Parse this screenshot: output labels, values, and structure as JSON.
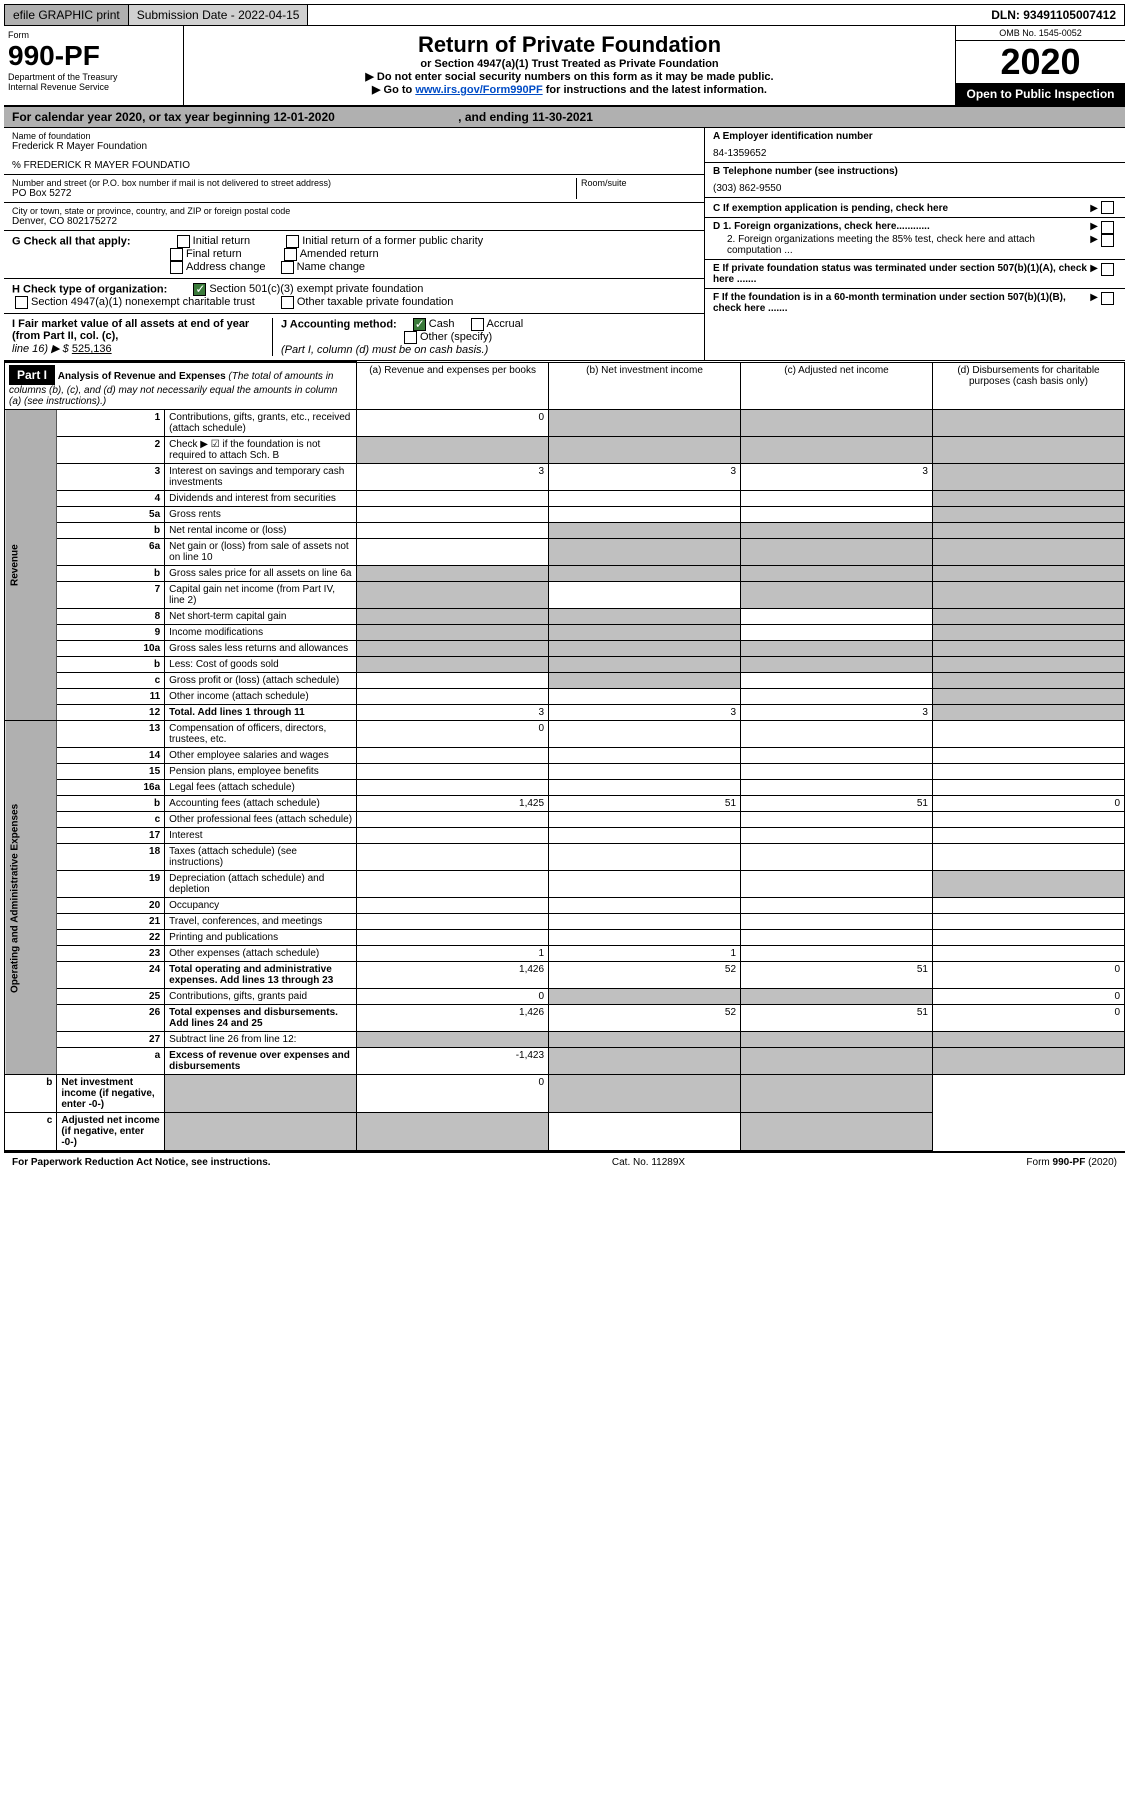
{
  "topbar": {
    "efile": "efile GRAPHIC print",
    "sub_label": "Submission Date - 2022-04-15",
    "dln": "DLN: 93491105007412"
  },
  "header": {
    "form_word": "Form",
    "form_no": "990-PF",
    "dept": "Department of the Treasury",
    "irs": "Internal Revenue Service",
    "title": "Return of Private Foundation",
    "subtitle": "or Section 4947(a)(1) Trust Treated as Private Foundation",
    "line1": "▶ Do not enter social security numbers on this form as it may be made public.",
    "line2a": "▶ Go to ",
    "line2b": "www.irs.gov/Form990PF",
    "line2c": " for instructions and the latest information.",
    "omb": "OMB No. 1545-0052",
    "year": "2020",
    "open": "Open to Public Inspection"
  },
  "cal": {
    "text": "For calendar year 2020, or tax year beginning 12-01-2020",
    "end": ", and ending 11-30-2021"
  },
  "info": {
    "name_lbl": "Name of foundation",
    "name": "Frederick R Mayer Foundation",
    "pct": "% FREDERICK R MAYER FOUNDATIO",
    "addr_lbl": "Number and street (or P.O. box number if mail is not delivered to street address)",
    "addr": "PO Box 5272",
    "room_lbl": "Room/suite",
    "city_lbl": "City or town, state or province, country, and ZIP or foreign postal code",
    "city": "Denver, CO  802175272",
    "a_lbl": "A Employer identification number",
    "a_val": "84-1359652",
    "b_lbl": "B Telephone number (see instructions)",
    "b_val": "(303) 862-9550",
    "c_lbl": "C If exemption application is pending, check here",
    "d1": "D 1. Foreign organizations, check here............",
    "d2": "2. Foreign organizations meeting the 85% test, check here and attach computation ...",
    "e_lbl": "E  If private foundation status was terminated under section 507(b)(1)(A), check here .......",
    "f_lbl": "F  If the foundation is in a 60-month termination under section 507(b)(1)(B), check here .......",
    "g": "G Check all that apply:",
    "g1": "Initial return",
    "g2": "Initial return of a former public charity",
    "g3": "Final return",
    "g4": "Amended return",
    "g5": "Address change",
    "g6": "Name change",
    "h": "H Check type of organization:",
    "h1": "Section 501(c)(3) exempt private foundation",
    "h2": "Section 4947(a)(1) nonexempt charitable trust",
    "h3": "Other taxable private foundation",
    "i": "I Fair market value of all assets at end of year (from Part II, col. (c),",
    "i2": "line 16) ▶ $",
    "i_val": "525,136",
    "j": "J Accounting method:",
    "j1": "Cash",
    "j2": "Accrual",
    "j3": "Other (specify)",
    "j4": "(Part I, column (d) must be on cash basis.)"
  },
  "part1": {
    "hdr": "Part I",
    "title": "Analysis of Revenue and Expenses",
    "note": " (The total of amounts in columns (b), (c), and (d) may not necessarily equal the amounts in column (a) (see instructions).)",
    "col_a": "(a)   Revenue and expenses per books",
    "col_b": "(b)   Net investment income",
    "col_c": "(c)   Adjusted net income",
    "col_d": "(d)   Disbursements for charitable purposes (cash basis only)",
    "rev_label": "Revenue",
    "op_label": "Operating and Administrative Expenses"
  },
  "rows": [
    {
      "n": "1",
      "d": "Contributions, gifts, grants, etc., received (attach schedule)",
      "a": "0",
      "b": "",
      "c": "",
      "dd": "",
      "ga": false,
      "gb": true,
      "gc": true,
      "gd": true
    },
    {
      "n": "2",
      "d": "Check ▶ ☑ if the foundation is not required to attach Sch. B",
      "a": "",
      "b": "",
      "c": "",
      "dd": "",
      "ga": true,
      "gb": true,
      "gc": true,
      "gd": true
    },
    {
      "n": "3",
      "d": "Interest on savings and temporary cash investments",
      "a": "3",
      "b": "3",
      "c": "3",
      "dd": "",
      "ga": false,
      "gb": false,
      "gc": false,
      "gd": true
    },
    {
      "n": "4",
      "d": "Dividends and interest from securities",
      "a": "",
      "b": "",
      "c": "",
      "dd": "",
      "ga": false,
      "gb": false,
      "gc": false,
      "gd": true
    },
    {
      "n": "5a",
      "d": "Gross rents",
      "a": "",
      "b": "",
      "c": "",
      "dd": "",
      "ga": false,
      "gb": false,
      "gc": false,
      "gd": true
    },
    {
      "n": "b",
      "d": "Net rental income or (loss)",
      "a": "",
      "b": "",
      "c": "",
      "dd": "",
      "ga": false,
      "gb": true,
      "gc": true,
      "gd": true
    },
    {
      "n": "6a",
      "d": "Net gain or (loss) from sale of assets not on line 10",
      "a": "",
      "b": "",
      "c": "",
      "dd": "",
      "ga": false,
      "gb": true,
      "gc": true,
      "gd": true
    },
    {
      "n": "b",
      "d": "Gross sales price for all assets on line 6a",
      "a": "",
      "b": "",
      "c": "",
      "dd": "",
      "ga": true,
      "gb": true,
      "gc": true,
      "gd": true
    },
    {
      "n": "7",
      "d": "Capital gain net income (from Part IV, line 2)",
      "a": "",
      "b": "",
      "c": "",
      "dd": "",
      "ga": true,
      "gb": false,
      "gc": true,
      "gd": true
    },
    {
      "n": "8",
      "d": "Net short-term capital gain",
      "a": "",
      "b": "",
      "c": "",
      "dd": "",
      "ga": true,
      "gb": true,
      "gc": false,
      "gd": true
    },
    {
      "n": "9",
      "d": "Income modifications",
      "a": "",
      "b": "",
      "c": "",
      "dd": "",
      "ga": true,
      "gb": true,
      "gc": false,
      "gd": true
    },
    {
      "n": "10a",
      "d": "Gross sales less returns and allowances",
      "a": "",
      "b": "",
      "c": "",
      "dd": "",
      "ga": true,
      "gb": true,
      "gc": true,
      "gd": true
    },
    {
      "n": "b",
      "d": "Less: Cost of goods sold",
      "a": "",
      "b": "",
      "c": "",
      "dd": "",
      "ga": true,
      "gb": true,
      "gc": true,
      "gd": true
    },
    {
      "n": "c",
      "d": "Gross profit or (loss) (attach schedule)",
      "a": "",
      "b": "",
      "c": "",
      "dd": "",
      "ga": false,
      "gb": true,
      "gc": false,
      "gd": true
    },
    {
      "n": "11",
      "d": "Other income (attach schedule)",
      "a": "",
      "b": "",
      "c": "",
      "dd": "",
      "ga": false,
      "gb": false,
      "gc": false,
      "gd": true
    },
    {
      "n": "12",
      "d": "Total. Add lines 1 through 11",
      "a": "3",
      "b": "3",
      "c": "3",
      "dd": "",
      "ga": false,
      "gb": false,
      "gc": false,
      "gd": true,
      "bold": true
    },
    {
      "n": "13",
      "d": "Compensation of officers, directors, trustees, etc.",
      "a": "0",
      "b": "",
      "c": "",
      "dd": "",
      "ga": false,
      "gb": false,
      "gc": false,
      "gd": false
    },
    {
      "n": "14",
      "d": "Other employee salaries and wages",
      "a": "",
      "b": "",
      "c": "",
      "dd": "",
      "ga": false,
      "gb": false,
      "gc": false,
      "gd": false
    },
    {
      "n": "15",
      "d": "Pension plans, employee benefits",
      "a": "",
      "b": "",
      "c": "",
      "dd": "",
      "ga": false,
      "gb": false,
      "gc": false,
      "gd": false
    },
    {
      "n": "16a",
      "d": "Legal fees (attach schedule)",
      "a": "",
      "b": "",
      "c": "",
      "dd": "",
      "ga": false,
      "gb": false,
      "gc": false,
      "gd": false
    },
    {
      "n": "b",
      "d": "Accounting fees (attach schedule)",
      "a": "1,425",
      "b": "51",
      "c": "51",
      "dd": "0",
      "ga": false,
      "gb": false,
      "gc": false,
      "gd": false
    },
    {
      "n": "c",
      "d": "Other professional fees (attach schedule)",
      "a": "",
      "b": "",
      "c": "",
      "dd": "",
      "ga": false,
      "gb": false,
      "gc": false,
      "gd": false
    },
    {
      "n": "17",
      "d": "Interest",
      "a": "",
      "b": "",
      "c": "",
      "dd": "",
      "ga": false,
      "gb": false,
      "gc": false,
      "gd": false
    },
    {
      "n": "18",
      "d": "Taxes (attach schedule) (see instructions)",
      "a": "",
      "b": "",
      "c": "",
      "dd": "",
      "ga": false,
      "gb": false,
      "gc": false,
      "gd": false
    },
    {
      "n": "19",
      "d": "Depreciation (attach schedule) and depletion",
      "a": "",
      "b": "",
      "c": "",
      "dd": "",
      "ga": false,
      "gb": false,
      "gc": false,
      "gd": true
    },
    {
      "n": "20",
      "d": "Occupancy",
      "a": "",
      "b": "",
      "c": "",
      "dd": "",
      "ga": false,
      "gb": false,
      "gc": false,
      "gd": false
    },
    {
      "n": "21",
      "d": "Travel, conferences, and meetings",
      "a": "",
      "b": "",
      "c": "",
      "dd": "",
      "ga": false,
      "gb": false,
      "gc": false,
      "gd": false
    },
    {
      "n": "22",
      "d": "Printing and publications",
      "a": "",
      "b": "",
      "c": "",
      "dd": "",
      "ga": false,
      "gb": false,
      "gc": false,
      "gd": false
    },
    {
      "n": "23",
      "d": "Other expenses (attach schedule)",
      "a": "1",
      "b": "1",
      "c": "",
      "dd": "",
      "ga": false,
      "gb": false,
      "gc": false,
      "gd": false
    },
    {
      "n": "24",
      "d": "Total operating and administrative expenses. Add lines 13 through 23",
      "a": "1,426",
      "b": "52",
      "c": "51",
      "dd": "0",
      "ga": false,
      "gb": false,
      "gc": false,
      "gd": false,
      "bold": true
    },
    {
      "n": "25",
      "d": "Contributions, gifts, grants paid",
      "a": "0",
      "b": "",
      "c": "",
      "dd": "0",
      "ga": false,
      "gb": true,
      "gc": true,
      "gd": false
    },
    {
      "n": "26",
      "d": "Total expenses and disbursements. Add lines 24 and 25",
      "a": "1,426",
      "b": "52",
      "c": "51",
      "dd": "0",
      "ga": false,
      "gb": false,
      "gc": false,
      "gd": false,
      "bold": true
    },
    {
      "n": "27",
      "d": "Subtract line 26 from line 12:",
      "a": "",
      "b": "",
      "c": "",
      "dd": "",
      "ga": true,
      "gb": true,
      "gc": true,
      "gd": true
    },
    {
      "n": "a",
      "d": "Excess of revenue over expenses and disbursements",
      "a": "-1,423",
      "b": "",
      "c": "",
      "dd": "",
      "ga": false,
      "gb": true,
      "gc": true,
      "gd": true,
      "bold": true
    },
    {
      "n": "b",
      "d": "Net investment income (if negative, enter -0-)",
      "a": "",
      "b": "0",
      "c": "",
      "dd": "",
      "ga": true,
      "gb": false,
      "gc": true,
      "gd": true,
      "bold": true
    },
    {
      "n": "c",
      "d": "Adjusted net income (if negative, enter -0-)",
      "a": "",
      "b": "",
      "c": "",
      "dd": "",
      "ga": true,
      "gb": true,
      "gc": false,
      "gd": true,
      "bold": true
    }
  ],
  "footer": {
    "left": "For Paperwork Reduction Act Notice, see instructions.",
    "mid": "Cat. No. 11289X",
    "right": "Form 990-PF (2020)"
  }
}
